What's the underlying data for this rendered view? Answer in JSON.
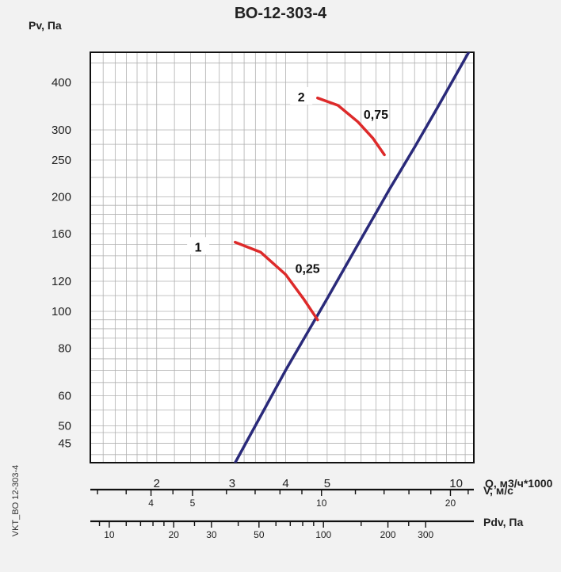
{
  "chart_data": {
    "type": "line",
    "title": "ВО-12-303-4",
    "ylabel": "Pv, Па",
    "xlabel": "Q, м3/ч*1000",
    "side_label": "VKT_BO 12-303-4",
    "x_scale": "log",
    "y_scale": "log",
    "xlim": [
      1.4,
      11
    ],
    "ylim": [
      40,
      480
    ],
    "y_ticks": [
      45,
      50,
      60,
      80,
      100,
      120,
      160,
      200,
      250,
      300,
      400
    ],
    "x_ticks": [
      2,
      3,
      4,
      5,
      10
    ],
    "grid": true,
    "series": [
      {
        "name": "",
        "color": "#2a2a7a",
        "points": [
          [
            3.05,
            40
          ],
          [
            4.0,
            70
          ],
          [
            5.0,
            108
          ],
          [
            6.0,
            155
          ],
          [
            7.0,
            210
          ],
          [
            8.0,
            270
          ],
          [
            9.0,
            340
          ],
          [
            10.7,
            480
          ]
        ]
      },
      {
        "name": "1",
        "color": "#dd2a2a",
        "points": [
          [
            3.05,
            152
          ],
          [
            3.5,
            143
          ],
          [
            4.0,
            125
          ],
          [
            4.4,
            108
          ],
          [
            4.75,
            95
          ]
        ]
      },
      {
        "name": "2",
        "color": "#dd2a2a",
        "points": [
          [
            4.75,
            364
          ],
          [
            5.3,
            348
          ],
          [
            5.9,
            315
          ],
          [
            6.4,
            285
          ],
          [
            6.8,
            258
          ]
        ]
      }
    ],
    "annotations": [
      {
        "text": "1",
        "x": 2.5,
        "y": 148
      },
      {
        "text": "0,25",
        "x": 4.5,
        "y": 130
      },
      {
        "text": "2",
        "x": 4.35,
        "y": 367
      },
      {
        "text": "0,75",
        "x": 6.5,
        "y": 330
      }
    ],
    "secondary_axes": [
      {
        "label": "V, м/с",
        "ticks": [
          4,
          5,
          10,
          20
        ]
      },
      {
        "label": "Pdv, Па",
        "ticks": [
          10,
          20,
          30,
          50,
          100,
          200,
          300
        ]
      }
    ]
  }
}
